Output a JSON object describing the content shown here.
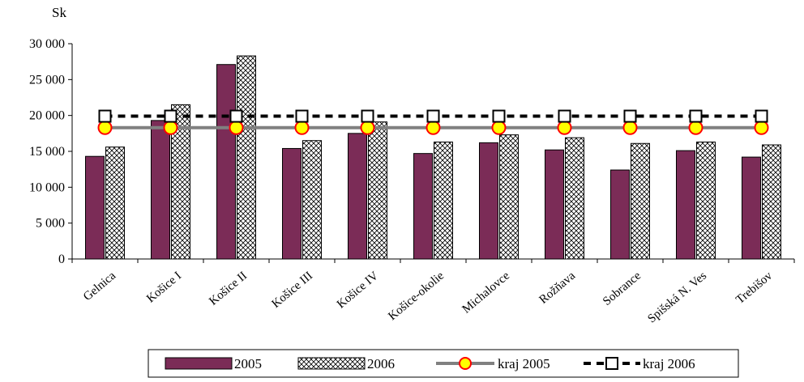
{
  "chart_data": {
    "type": "bar",
    "unit_label": "Sk",
    "categories": [
      "Gelnica",
      "Košice I",
      "Košice II",
      "Košice III",
      "Košice IV",
      "Košice-okolie",
      "Michalovce",
      "Rožňava",
      "Sobrance",
      "Spišská N. Ves",
      "Trebišov"
    ],
    "series": [
      {
        "name": "2005",
        "kind": "bar",
        "color": "#7b2c57",
        "values": [
          14300,
          19300,
          27100,
          15400,
          17500,
          14700,
          16200,
          15200,
          12400,
          15100,
          14200
        ]
      },
      {
        "name": "2006",
        "kind": "bar",
        "pattern": "crosshatch",
        "values": [
          15600,
          21500,
          28300,
          16500,
          19100,
          16300,
          17300,
          16900,
          16100,
          16300,
          15900
        ]
      },
      {
        "name": "kraj 2005",
        "kind": "line",
        "marker": "circle",
        "color": "#808080",
        "marker_fill": "#ffff00",
        "marker_stroke": "#ff0000",
        "values": [
          18300,
          18300,
          18300,
          18300,
          18300,
          18300,
          18300,
          18300,
          18300,
          18300,
          18300
        ]
      },
      {
        "name": "kraj 2006",
        "kind": "line",
        "dash": "dashed",
        "marker": "square",
        "color": "#000000",
        "values": [
          19900,
          19900,
          19900,
          19900,
          19900,
          19900,
          19900,
          19900,
          19900,
          19900,
          19900
        ]
      }
    ],
    "y_ticks": [
      "0",
      "5 000",
      "10 000",
      "15 000",
      "20 000",
      "25 000",
      "30 000"
    ],
    "ylim": [
      0,
      30000
    ],
    "grid": false,
    "legend_position": "bottom"
  }
}
